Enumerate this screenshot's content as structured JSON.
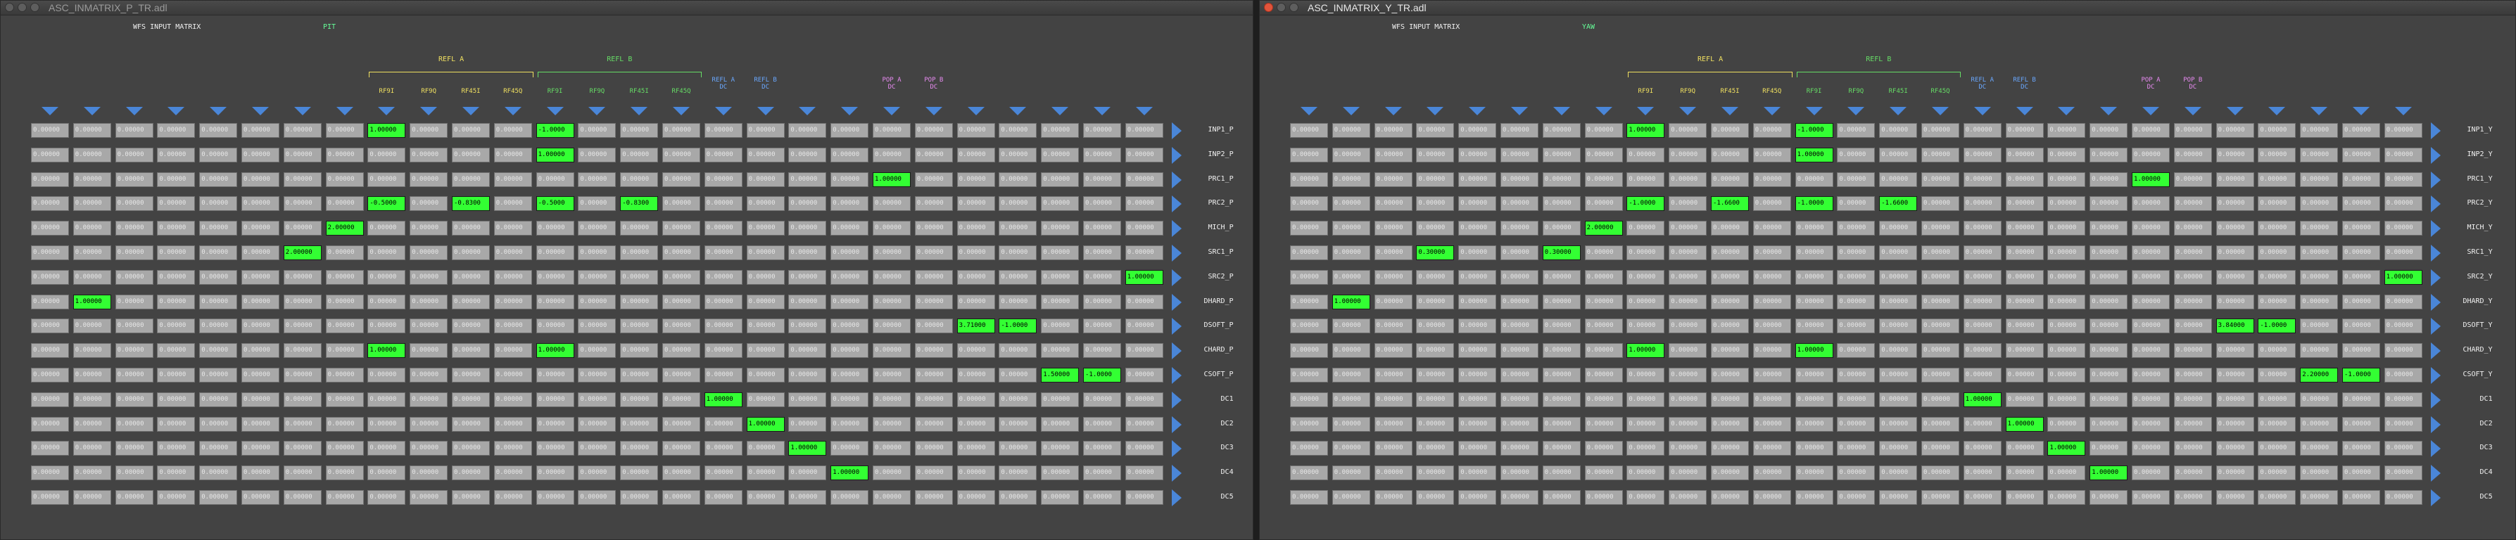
{
  "screen": {
    "left_window": {
      "title": "ASC_INMATRIX_P_TR.adl",
      "active": false,
      "heading": "WFS INPUT MATRIX",
      "dof": "PIT",
      "row_labels": [
        "INP1_P",
        "INP2_P",
        "PRC1_P",
        "PRC2_P",
        "MICH_P",
        "SRC1_P",
        "SRC2_P",
        "DHARD_P",
        "DSOFT_P",
        "CHARD_P",
        "CSOFT_P",
        "DC1",
        "DC2",
        "DC3",
        "DC4",
        "DC5"
      ],
      "highlights": [
        {
          "row": 0,
          "col": 8,
          "v": "1.00000"
        },
        {
          "row": 0,
          "col": 12,
          "v": "-1.0000"
        },
        {
          "row": 1,
          "col": 12,
          "v": "1.00000"
        },
        {
          "row": 2,
          "col": 20,
          "v": "1.00000"
        },
        {
          "row": 3,
          "col": 8,
          "v": "-0.5000"
        },
        {
          "row": 3,
          "col": 10,
          "v": "-0.8300"
        },
        {
          "row": 3,
          "col": 12,
          "v": "-0.5000"
        },
        {
          "row": 3,
          "col": 14,
          "v": "-0.8300"
        },
        {
          "row": 4,
          "col": 7,
          "v": "2.00000"
        },
        {
          "row": 5,
          "col": 6,
          "v": "2.00000"
        },
        {
          "row": 6,
          "col": 26,
          "v": "1.00000"
        },
        {
          "row": 7,
          "col": 1,
          "v": "1.00000"
        },
        {
          "row": 8,
          "col": 22,
          "v": "3.71000"
        },
        {
          "row": 8,
          "col": 23,
          "v": "-1.0000"
        },
        {
          "row": 9,
          "col": 8,
          "v": "1.00000"
        },
        {
          "row": 9,
          "col": 12,
          "v": "1.00000"
        },
        {
          "row": 10,
          "col": 24,
          "v": "1.50000"
        },
        {
          "row": 10,
          "col": 25,
          "v": "-1.0000"
        },
        {
          "row": 11,
          "col": 16,
          "v": "1.00000"
        },
        {
          "row": 12,
          "col": 17,
          "v": "1.00000"
        },
        {
          "row": 13,
          "col": 18,
          "v": "1.00000"
        },
        {
          "row": 14,
          "col": 19,
          "v": "1.00000"
        }
      ]
    },
    "right_window": {
      "title": "ASC_INMATRIX_Y_TR.adl",
      "active": true,
      "heading": "WFS INPUT MATRIX",
      "dof": "YAW",
      "row_labels": [
        "INP1_Y",
        "INP2_Y",
        "PRC1_Y",
        "PRC2_Y",
        "MICH_Y",
        "SRC1_Y",
        "SRC2_Y",
        "DHARD_Y",
        "DSOFT_Y",
        "CHARD_Y",
        "CSOFT_Y",
        "DC1",
        "DC2",
        "DC3",
        "DC4",
        "DC5"
      ],
      "highlights": [
        {
          "row": 0,
          "col": 8,
          "v": "1.00000"
        },
        {
          "row": 0,
          "col": 12,
          "v": "-1.0000"
        },
        {
          "row": 1,
          "col": 12,
          "v": "1.00000"
        },
        {
          "row": 2,
          "col": 20,
          "v": "1.00000"
        },
        {
          "row": 3,
          "col": 8,
          "v": "-1.0000"
        },
        {
          "row": 3,
          "col": 10,
          "v": "-1.6600"
        },
        {
          "row": 3,
          "col": 12,
          "v": "-1.0000"
        },
        {
          "row": 3,
          "col": 14,
          "v": "-1.6600"
        },
        {
          "row": 4,
          "col": 7,
          "v": "2.00000"
        },
        {
          "row": 5,
          "col": 3,
          "v": "0.30000"
        },
        {
          "row": 5,
          "col": 6,
          "v": "0.30000"
        },
        {
          "row": 6,
          "col": 26,
          "v": "1.00000"
        },
        {
          "row": 7,
          "col": 1,
          "v": "1.00000"
        },
        {
          "row": 8,
          "col": 22,
          "v": "3.84000"
        },
        {
          "row": 8,
          "col": 23,
          "v": "-1.0000"
        },
        {
          "row": 9,
          "col": 8,
          "v": "1.00000"
        },
        {
          "row": 9,
          "col": 12,
          "v": "1.00000"
        },
        {
          "row": 10,
          "col": 24,
          "v": "2.20000"
        },
        {
          "row": 10,
          "col": 25,
          "v": "-1.0000"
        },
        {
          "row": 11,
          "col": 16,
          "v": "1.00000"
        },
        {
          "row": 12,
          "col": 17,
          "v": "1.00000"
        },
        {
          "row": 13,
          "col": 18,
          "v": "1.00000"
        },
        {
          "row": 14,
          "col": 19,
          "v": "1.00000"
        }
      ]
    },
    "default_value": "0.00000",
    "groups": [
      {
        "label": "REFL A",
        "col_start": 8,
        "col_end": 11,
        "color": "#f0e060"
      },
      {
        "label": "REFL B",
        "col_start": 12,
        "col_end": 15,
        "color": "#66dd66"
      }
    ],
    "column_labels": [
      {
        "col": 8,
        "label": "RF9I",
        "color": "#f0e060"
      },
      {
        "col": 9,
        "label": "RF9Q",
        "color": "#f0e060"
      },
      {
        "col": 10,
        "label": "RF45I",
        "color": "#f0e060"
      },
      {
        "col": 11,
        "label": "RF45Q",
        "color": "#f0e060"
      },
      {
        "col": 12,
        "label": "RF9I",
        "color": "#66dd66"
      },
      {
        "col": 13,
        "label": "RF9Q",
        "color": "#66dd66"
      },
      {
        "col": 14,
        "label": "RF45I",
        "color": "#66dd66"
      },
      {
        "col": 15,
        "label": "RF45Q",
        "color": "#66dd66"
      },
      {
        "col": 16,
        "label": "REFL A\nDC",
        "color": "#6aa8ff"
      },
      {
        "col": 17,
        "label": "REFL B\nDC",
        "color": "#6aa8ff"
      },
      {
        "col": 20,
        "label": "POP A\nDC",
        "color": "#e78af0"
      },
      {
        "col": 21,
        "label": "POP B\nDC",
        "color": "#e78af0"
      }
    ],
    "colors": {
      "arrow": "#4a86d8",
      "cell_on": "#33ff33",
      "cell_off": "#a8a8a8",
      "bg": "#434343"
    }
  }
}
